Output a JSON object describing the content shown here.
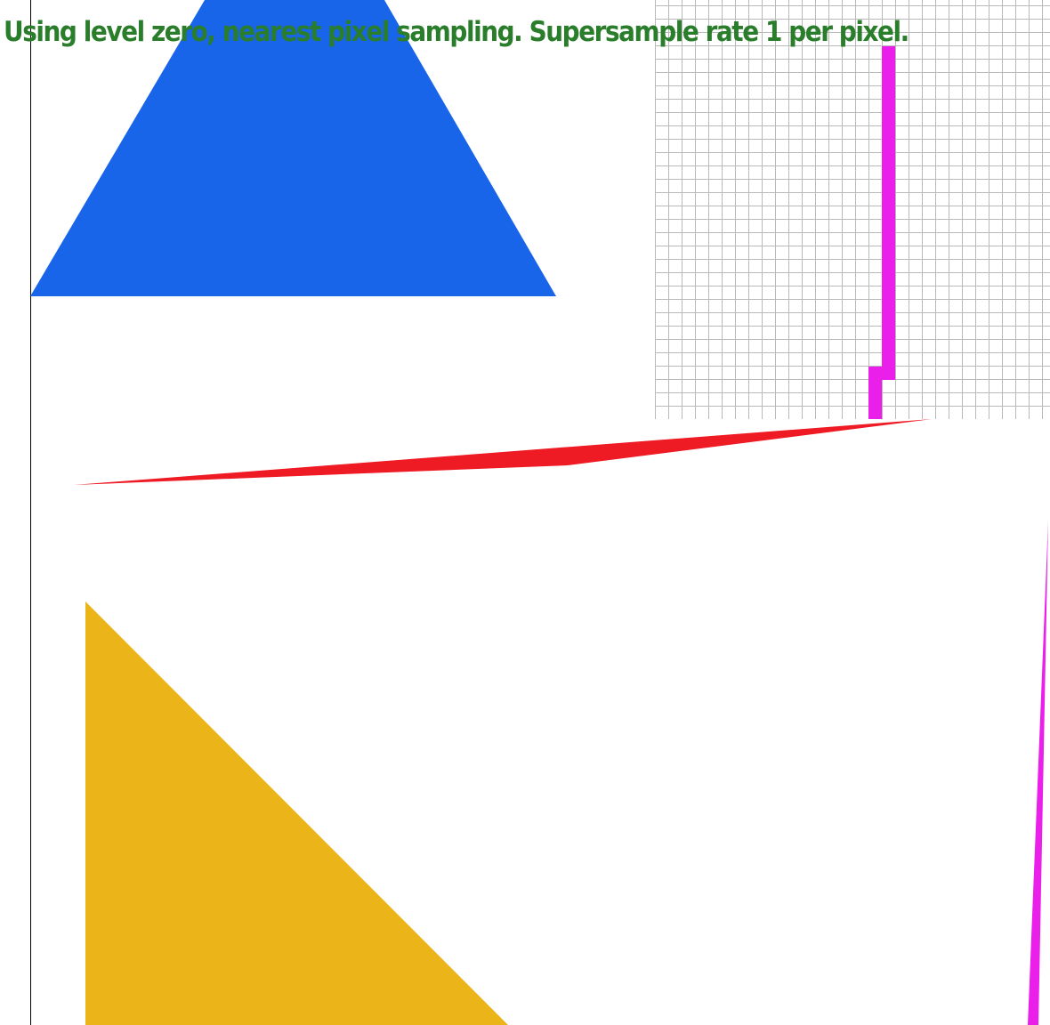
{
  "status": {
    "text": "Using level zero, nearest pixel sampling. Supersample rate 1 per pixel.",
    "color": "#2a7d2a"
  },
  "shapes": [
    {
      "name": "blue-trapezoid",
      "color": "#1965ea"
    },
    {
      "name": "red-sliver-triangle",
      "color": "#ee1a24"
    },
    {
      "name": "yellow-triangle",
      "color": "#ebb419"
    },
    {
      "name": "magenta-thin-triangle",
      "color": "#ea1fea"
    }
  ],
  "zoom_inspector": {
    "grid_color": "#b9b9b9",
    "highlight_color": "#ea1fea",
    "background": "#ffffff"
  },
  "screen_edge_color": "#000000"
}
